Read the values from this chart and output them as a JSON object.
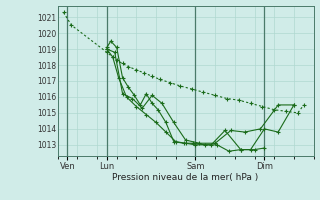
{
  "background_color": "#d0ece8",
  "grid_color": "#b0d8d0",
  "line_color": "#1a6b1a",
  "vline_color": "#4a7a6a",
  "title": "Pression niveau de la mer( hPa )",
  "ylabel_vals": [
    1013,
    1014,
    1015,
    1016,
    1017,
    1018,
    1019,
    1020,
    1021
  ],
  "ylim": [
    1012.3,
    1021.7
  ],
  "xtick_labels": [
    "Ven",
    "Lun",
    "Sam",
    "Dim"
  ],
  "xtick_positions": [
    0.5,
    2.5,
    7.0,
    10.5
  ],
  "vline_positions": [
    0.5,
    2.5,
    7.0,
    10.5
  ],
  "xlim": [
    0,
    13.0
  ],
  "num_gridlines_x": 13,
  "lines": [
    {
      "x": [
        0.3,
        0.7,
        2.5,
        2.8,
        3.0,
        3.3,
        3.6,
        4.0,
        4.4,
        4.8,
        5.2,
        5.7,
        6.2,
        6.8,
        7.4,
        8.0,
        8.6,
        9.2,
        9.8,
        10.4,
        11.0,
        11.6,
        12.2,
        12.5
      ],
      "y": [
        1021.3,
        1020.5,
        1018.8,
        1018.5,
        1018.3,
        1018.1,
        1017.9,
        1017.7,
        1017.5,
        1017.3,
        1017.1,
        1016.9,
        1016.7,
        1016.5,
        1016.3,
        1016.1,
        1015.9,
        1015.8,
        1015.6,
        1015.4,
        1015.2,
        1015.1,
        1015.0,
        1015.5
      ],
      "style": "dotted"
    },
    {
      "x": [
        2.5,
        2.7,
        3.0,
        3.3,
        3.6,
        3.9,
        4.2,
        4.5,
        4.8,
        5.1,
        5.5,
        5.9,
        6.4,
        6.9,
        7.5,
        8.1,
        8.7,
        9.3,
        9.8,
        10.5,
        11.2,
        12.0
      ],
      "y": [
        1019.1,
        1019.5,
        1019.1,
        1017.2,
        1016.6,
        1016.1,
        1015.5,
        1016.2,
        1015.6,
        1015.2,
        1014.4,
        1013.2,
        1013.1,
        1013.1,
        1013.0,
        1013.0,
        1012.6,
        1012.7,
        1012.7,
        1014.0,
        1013.8,
        1015.5
      ],
      "style": "solid"
    },
    {
      "x": [
        2.5,
        2.8,
        3.1,
        3.5,
        4.0,
        4.5,
        5.0,
        5.5,
        6.0,
        6.5,
        7.0,
        7.8,
        8.5,
        9.3,
        10.0,
        10.5
      ],
      "y": [
        1019.0,
        1018.5,
        1017.2,
        1016.0,
        1015.4,
        1014.9,
        1014.4,
        1013.8,
        1013.2,
        1013.1,
        1013.0,
        1013.0,
        1013.9,
        1012.7,
        1012.7,
        1012.8
      ],
      "style": "solid"
    },
    {
      "x": [
        2.5,
        2.9,
        3.3,
        3.8,
        4.3,
        4.8,
        5.3,
        5.9,
        6.5,
        7.2,
        8.0,
        8.8,
        9.5,
        10.3,
        11.2,
        12.0
      ],
      "y": [
        1019.0,
        1018.8,
        1016.2,
        1015.9,
        1015.3,
        1016.1,
        1015.6,
        1014.4,
        1013.3,
        1013.1,
        1013.1,
        1013.9,
        1013.8,
        1014.0,
        1015.5,
        1015.5
      ],
      "style": "solid"
    }
  ]
}
